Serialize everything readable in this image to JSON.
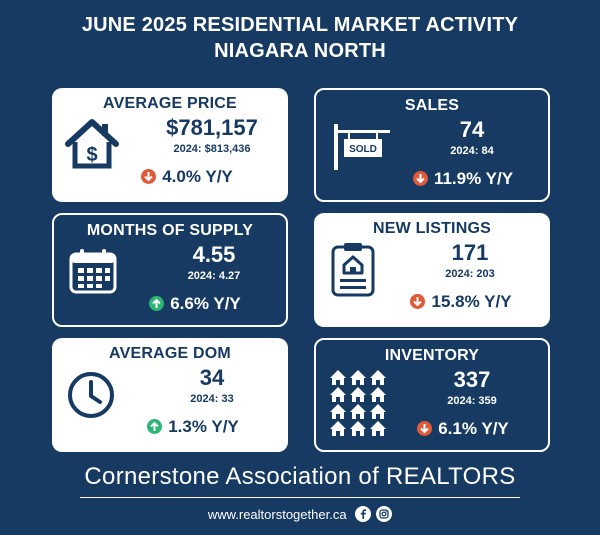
{
  "header": {
    "title_line1": "JUNE 2025 RESIDENTIAL MARKET ACTIVITY",
    "title_line2": "NIAGARA NORTH"
  },
  "cards": {
    "average_price": {
      "title": "AVERAGE PRICE",
      "value": "$781,157",
      "prev": "2024: $813,436",
      "change": "4.0% Y/Y",
      "direction": "down",
      "icon": "house-dollar-icon"
    },
    "sales": {
      "title": "SALES",
      "value": "74",
      "prev": "2024: 84",
      "change": "11.9% Y/Y",
      "direction": "down",
      "icon": "sold-sign-icon",
      "sign_text": "SOLD"
    },
    "months_of_supply": {
      "title": "MONTHS OF SUPPLY",
      "value": "4.55",
      "prev": "2024: 4.27",
      "change": "6.6% Y/Y",
      "direction": "up",
      "icon": "calendar-icon"
    },
    "new_listings": {
      "title": "NEW LISTINGS",
      "value": "171",
      "prev": "2024: 203",
      "change": "15.8% Y/Y",
      "direction": "down",
      "icon": "clipboard-house-icon"
    },
    "average_dom": {
      "title": "AVERAGE DOM",
      "value": "34",
      "prev": "2024: 33",
      "change": "1.3% Y/Y",
      "direction": "up",
      "icon": "clock-icon"
    },
    "inventory": {
      "title": "INVENTORY",
      "value": "337",
      "prev": "2024: 359",
      "change": "6.1% Y/Y",
      "direction": "down",
      "icon": "houses-grid-icon"
    }
  },
  "footer": {
    "organization": "Cornerstone Association of REALTORS",
    "url": "www.realtorstogether.ca",
    "social_icons": [
      "facebook-icon",
      "instagram-icon"
    ]
  },
  "colors": {
    "background": "#173a63",
    "card_light": "#ffffff",
    "down": "#e05a3a",
    "up": "#2bb673"
  }
}
